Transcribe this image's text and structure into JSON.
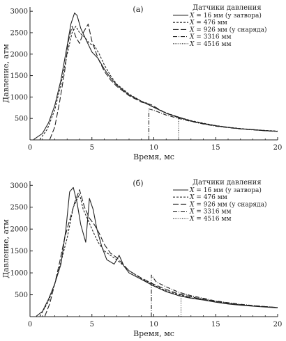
{
  "chart_data": [
    {
      "type": "line",
      "panel_label": "(а)",
      "xlabel": "Время, мс",
      "ylabel": "Давление, атм",
      "xlim": [
        0,
        20
      ],
      "ylim": [
        0,
        3100
      ],
      "xticks": [
        "0",
        "5",
        "10",
        "15",
        "20"
      ],
      "yticks": [
        "500",
        "1000",
        "1500",
        "2000",
        "2500",
        "3000"
      ],
      "grid": false,
      "legend_position": "top-right",
      "legend_title": "Датчики давления",
      "series": [
        {
          "name": "X = 16 мм (у затвора)",
          "x_var": "X",
          "eq": " = ",
          "value_text": "16 мм (у затвора)",
          "style": "solid",
          "x": [
            0.3,
            1.0,
            1.5,
            2.0,
            2.5,
            3.0,
            3.3,
            3.6,
            3.8,
            4.1,
            4.5,
            5.0,
            5.5,
            6.0,
            6.5,
            7.0,
            8.0,
            9.0,
            9.5,
            10.0,
            11.0,
            12.0,
            13.0,
            14.0,
            15.0,
            16.0,
            17.0,
            18.0,
            19.0,
            20.0
          ],
          "y": [
            10,
            150,
            400,
            800,
            1400,
            2200,
            2700,
            2960,
            2900,
            2600,
            2350,
            2050,
            1900,
            1650,
            1450,
            1280,
            1050,
            900,
            830,
            760,
            620,
            530,
            440,
            380,
            330,
            290,
            260,
            240,
            215,
            200
          ]
        },
        {
          "name": "X = 476 мм",
          "x_var": "X",
          "eq": " = ",
          "value_text": "476 мм",
          "style": "dashed",
          "x": [
            0.8,
            1.4,
            2.0,
            2.5,
            3.0,
            3.4,
            3.7,
            4.0,
            4.4,
            4.8,
            5.2,
            5.6,
            6.0,
            6.5,
            7.0,
            8.0,
            9.0,
            9.6,
            10.0,
            11.0,
            12.0,
            13.0,
            14.0,
            15.0,
            16.0,
            17.0,
            18.0,
            19.0,
            20.0
          ],
          "y": [
            10,
            250,
            700,
            1300,
            2000,
            2500,
            2650,
            2500,
            2400,
            2250,
            2200,
            2000,
            1750,
            1500,
            1300,
            1070,
            900,
            840,
            760,
            630,
            530,
            450,
            390,
            335,
            295,
            265,
            240,
            220,
            205
          ]
        },
        {
          "name": "X = 926 мм (у снаряда)",
          "x_var": "X",
          "eq": " = ",
          "value_text": "926 мм (у снаряда)",
          "style": "longdash",
          "x": [
            1.6,
            2.0,
            2.4,
            2.8,
            3.1,
            3.4,
            3.7,
            4.0,
            4.3,
            4.7,
            5.0,
            5.5,
            6.0,
            6.5,
            7.0,
            8.0,
            9.0,
            9.8,
            10.5,
            11.0,
            12.0,
            13.0,
            14.0,
            15.0,
            16.0,
            17.0,
            18.0,
            19.0,
            20.0
          ],
          "y": [
            10,
            300,
            900,
            1600,
            2300,
            2650,
            2400,
            2250,
            2500,
            2700,
            2300,
            1900,
            1600,
            1400,
            1250,
            1030,
            880,
            820,
            700,
            620,
            520,
            440,
            380,
            330,
            290,
            260,
            235,
            215,
            200
          ]
        },
        {
          "name": "X = 3316 мм",
          "x_var": "X",
          "eq": " = ",
          "value_text": "3316 мм",
          "style": "dashdot",
          "x": [
            9.6,
            9.6,
            10.0,
            11.0,
            12.0,
            13.0,
            14.0,
            15.0,
            16.0,
            17.0,
            18.0,
            19.0,
            20.0
          ],
          "y": [
            0,
            720,
            690,
            580,
            500,
            430,
            370,
            320,
            285,
            255,
            232,
            212,
            195
          ]
        },
        {
          "name": "X = 4516 мм",
          "x_var": "X",
          "eq": " = ",
          "value_text": "4516 мм",
          "style": "dotted",
          "x": [
            12.0,
            12.0,
            13.0,
            14.0,
            15.0,
            16.0,
            17.0,
            18.0,
            19.0,
            20.0
          ],
          "y": [
            0,
            520,
            440,
            375,
            325,
            290,
            260,
            237,
            217,
            200
          ]
        }
      ]
    },
    {
      "type": "line",
      "panel_label": "(б)",
      "xlabel": "Время, мс",
      "ylabel": "Давление, атм",
      "xlim": [
        0,
        20
      ],
      "ylim": [
        0,
        3100
      ],
      "xticks": [
        "0",
        "5",
        "10",
        "15",
        "20"
      ],
      "yticks": [
        "500",
        "1000",
        "1500",
        "2000",
        "2500",
        "3000"
      ],
      "grid": false,
      "legend_position": "top-right",
      "legend_title": "Датчики давления",
      "series": [
        {
          "name": "X = 16 мм (у затвора)",
          "x_var": "X",
          "eq": " = ",
          "value_text": "16 мм (у затвора)",
          "style": "solid",
          "x": [
            0.5,
            1.0,
            1.5,
            2.0,
            2.5,
            2.9,
            3.2,
            3.5,
            3.8,
            4.1,
            4.5,
            4.8,
            5.1,
            5.4,
            5.8,
            6.2,
            6.8,
            7.2,
            7.6,
            8.0,
            9.0,
            10.0,
            11.0,
            12.0,
            13.0,
            14.0,
            15.0,
            16.0,
            17.0,
            18.0,
            19.0,
            20.0
          ],
          "y": [
            10,
            120,
            400,
            750,
            1200,
            2000,
            2850,
            2950,
            2600,
            2100,
            1700,
            2700,
            2450,
            2000,
            1600,
            1300,
            1200,
            1400,
            1150,
            1000,
            850,
            700,
            570,
            480,
            420,
            380,
            330,
            290,
            260,
            240,
            220,
            200
          ]
        },
        {
          "name": "X = 476 мм",
          "x_var": "X",
          "eq": " = ",
          "value_text": "476 мм",
          "style": "dashed",
          "x": [
            0.8,
            1.5,
            2.0,
            2.5,
            3.0,
            3.5,
            4.0,
            4.3,
            4.7,
            5.0,
            5.5,
            6.0,
            6.5,
            7.0,
            7.5,
            8.0,
            9.0,
            10.0,
            11.0,
            12.0,
            13.0,
            14.0,
            15.0,
            16.0,
            17.0,
            18.0,
            19.0,
            20.0
          ],
          "y": [
            10,
            350,
            750,
            1250,
            1800,
            2500,
            2800,
            2450,
            2200,
            2000,
            1700,
            1500,
            1400,
            1300,
            1180,
            1050,
            870,
            720,
            590,
            500,
            430,
            390,
            340,
            300,
            270,
            245,
            225,
            205
          ]
        },
        {
          "name": "X = 926 мм (у снаряда)",
          "x_var": "X",
          "eq": " = ",
          "value_text": "926 мм (у снаряда)",
          "style": "longdash",
          "x": [
            1.2,
            1.6,
            2.0,
            2.4,
            2.8,
            3.2,
            3.6,
            4.0,
            4.4,
            4.8,
            5.2,
            5.6,
            6.0,
            6.5,
            7.0,
            7.5,
            8.0,
            9.0,
            10.0,
            11.0,
            12.0,
            13.0,
            14.0,
            15.0,
            16.0,
            17.0,
            18.0,
            19.0,
            20.0
          ],
          "y": [
            10,
            300,
            750,
            1250,
            1800,
            2200,
            2600,
            2900,
            2500,
            2250,
            2100,
            1900,
            1650,
            1450,
            1350,
            1200,
            1050,
            880,
            740,
            620,
            520,
            450,
            400,
            350,
            310,
            275,
            250,
            230,
            205
          ]
        },
        {
          "name": "X = 3316 мм",
          "x_var": "X",
          "eq": " = ",
          "value_text": "3316 мм",
          "style": "dashdot",
          "x": [
            9.8,
            9.8,
            10.2,
            11.0,
            12.0,
            13.0,
            14.0,
            15.0,
            16.0,
            17.0,
            18.0,
            19.0,
            20.0
          ],
          "y": [
            0,
            950,
            790,
            680,
            560,
            480,
            420,
            360,
            320,
            285,
            255,
            230,
            210
          ]
        },
        {
          "name": "X = 4516 мм",
          "x_var": "X",
          "eq": " = ",
          "value_text": "4516 мм",
          "style": "dotted",
          "x": [
            12.2,
            12.2,
            13.0,
            14.0,
            15.0,
            16.0,
            17.0,
            18.0,
            19.0,
            20.0
          ],
          "y": [
            0,
            540,
            460,
            400,
            345,
            305,
            272,
            247,
            225,
            205
          ]
        }
      ]
    }
  ]
}
